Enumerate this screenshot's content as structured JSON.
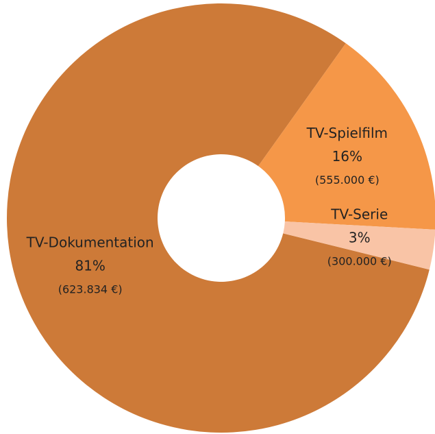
{
  "chart_data": {
    "type": "donut",
    "categories": [
      "TV-Dokumentation",
      "TV-Spielfilm",
      "TV-Serie"
    ],
    "values": [
      81,
      16,
      3
    ],
    "value_labels": [
      "81%",
      "16%",
      "3%"
    ],
    "amount_labels": [
      "(623.834 €)",
      "(555.000 €)",
      "(300.000 €)"
    ],
    "colors": [
      "#cd7a38",
      "#f59748",
      "#f9c4a6"
    ]
  }
}
